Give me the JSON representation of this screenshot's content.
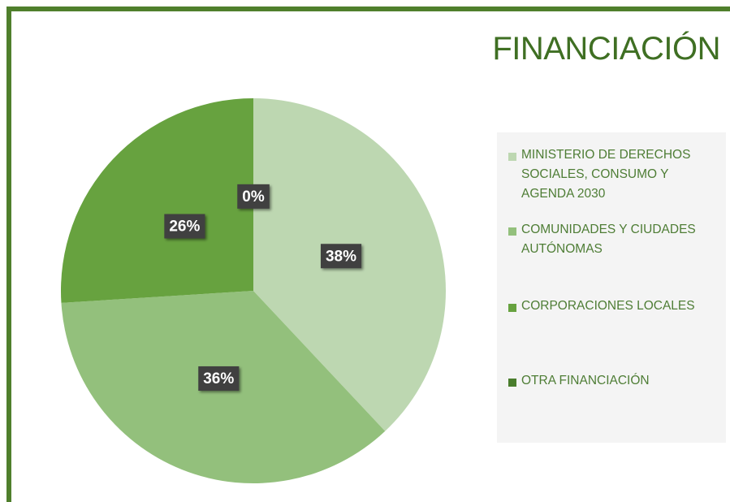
{
  "chart_data": {
    "type": "pie",
    "title": "FINANCIACIÓN",
    "categories": [
      "MINISTERIO DE DERECHOS SOCIALES, CONSUMO Y AGENDA 2030",
      "COMUNIDADES Y CIUDADES AUTÓNOMAS",
      "CORPORACIONES LOCALES",
      "OTRA FINANCIACIÓN"
    ],
    "values": [
      38,
      36,
      26,
      0
    ],
    "value_labels": [
      "38%",
      "36%",
      "26%",
      "0%"
    ],
    "colors": [
      "#bdd7b1",
      "#93c07c",
      "#67a23f",
      "#4a7d2d"
    ],
    "legend": "right"
  }
}
